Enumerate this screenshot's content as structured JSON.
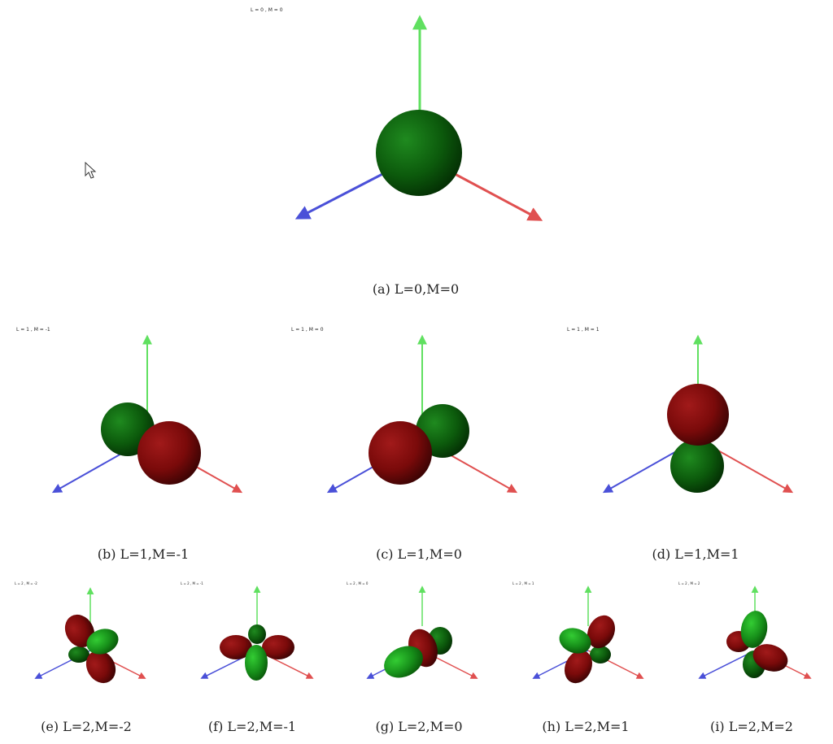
{
  "panels": [
    {
      "id": "a",
      "caption": "(a)  L=0,M=0",
      "label": "L = 0 , M = 0"
    },
    {
      "id": "b",
      "caption": "(b)  L=1,M=-1",
      "label": "L = 1 , M = -1"
    },
    {
      "id": "c",
      "caption": "(c)  L=1,M=0",
      "label": "L = 1 , M = 0"
    },
    {
      "id": "d",
      "caption": "(d)  L=1,M=1",
      "label": "L = 1 , M = 1"
    },
    {
      "id": "e",
      "caption": "(e)  L=2,M=-2",
      "label": "L = 2 , M = -2"
    },
    {
      "id": "f",
      "caption": "(f)  L=2,M=-1",
      "label": "L = 2 , M = -1"
    },
    {
      "id": "g",
      "caption": "(g)  L=2,M=0",
      "label": "L = 2 , M = 0"
    },
    {
      "id": "h",
      "caption": "(h)  L=2,M=1",
      "label": "L = 2 , M = 1"
    },
    {
      "id": "i",
      "caption": "(i)  L=2,M=2",
      "label": "L = 2 , M = 2"
    }
  ],
  "colors": {
    "positive_lobe": "#0f5a0f",
    "negative_lobe": "#7a0a0a",
    "axis_x": "#e05050",
    "axis_y": "#60e060",
    "axis_z": "#4a50d8"
  },
  "icons": {
    "cursor": "mouse-pointer-icon"
  }
}
